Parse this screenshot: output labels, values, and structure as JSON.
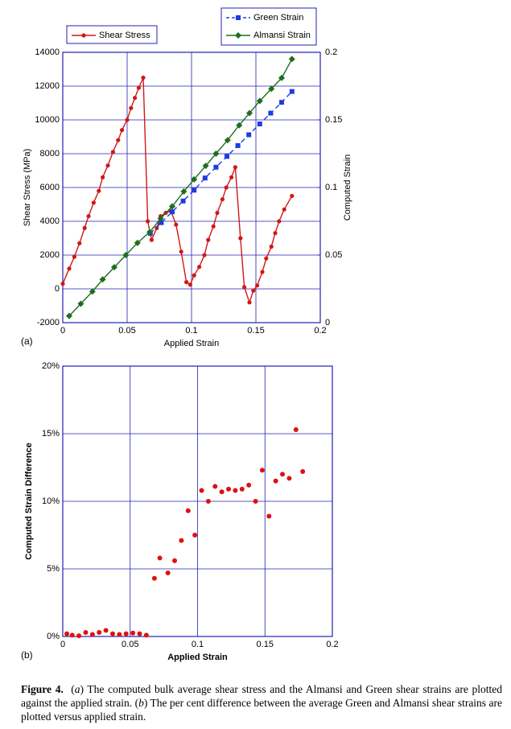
{
  "chart_data": [
    {
      "type": "line",
      "panel": "(a)",
      "x_label": "Applied Strain",
      "y_label": "Shear Stress (MPa)",
      "y2_label": "Computed Strain",
      "xlim": [
        0,
        0.2
      ],
      "xticks": [
        0,
        0.05,
        0.1,
        0.15,
        0.2
      ],
      "ylim": [
        -2000,
        14000
      ],
      "yticks": [
        -2000,
        0,
        2000,
        4000,
        6000,
        8000,
        10000,
        12000,
        14000
      ],
      "y2lim": [
        0,
        0.2
      ],
      "y2ticks": [
        0,
        0.05,
        0.1,
        0.15,
        0.2
      ],
      "grid": true,
      "series": [
        {
          "name": "Shear Stress",
          "color": "#d01818",
          "marker": "circle",
          "x": [
            0,
            0.005,
            0.009,
            0.013,
            0.017,
            0.02,
            0.024,
            0.028,
            0.031,
            0.035,
            0.039,
            0.043,
            0.046,
            0.05,
            0.053,
            0.056,
            0.059,
            0.0625,
            0.066,
            0.069,
            0.073,
            0.076,
            0.08,
            0.084,
            0.088,
            0.092,
            0.096,
            0.099,
            0.102,
            0.106,
            0.11,
            0.113,
            0.117,
            0.12,
            0.124,
            0.127,
            0.131,
            0.134,
            0.138,
            0.141,
            0.145,
            0.148,
            0.151,
            0.155,
            0.158,
            0.162,
            0.165,
            0.168,
            0.172,
            0.178
          ],
          "values": [
            300,
            1200,
            1900,
            2700,
            3600,
            4300,
            5100,
            5800,
            6600,
            7300,
            8100,
            8800,
            9400,
            10000,
            10700,
            11300,
            11900,
            12500,
            4000,
            2900,
            3600,
            4300,
            4500,
            4600,
            3800,
            2200,
            400,
            250,
            800,
            1300,
            2000,
            2900,
            3700,
            4500,
            5300,
            6000,
            6600,
            7200,
            3000,
            100,
            -800,
            -100,
            200,
            1000,
            1800,
            2500,
            3300,
            4000,
            4700,
            5500
          ]
        },
        {
          "name": "Green Strain",
          "color": "#1e3ce0",
          "marker": "square",
          "dashed": true,
          "axis": "y2",
          "x": [
            0.068,
            0.0765,
            0.085,
            0.0935,
            0.102,
            0.1105,
            0.119,
            0.1275,
            0.136,
            0.1445,
            0.153,
            0.1615,
            0.17,
            0.178
          ],
          "values": [
            0.066,
            0.074,
            0.082,
            0.09,
            0.098,
            0.107,
            0.115,
            0.123,
            0.131,
            0.139,
            0.147,
            0.155,
            0.163,
            0.171
          ]
        },
        {
          "name": "Almansi Strain",
          "color": "#1e6e1e",
          "marker": "diamond",
          "axis": "y2",
          "x": [
            0.005,
            0.014,
            0.023,
            0.031,
            0.04,
            0.049,
            0.058,
            0.0675,
            0.076,
            0.085,
            0.094,
            0.102,
            0.111,
            0.119,
            0.128,
            0.137,
            0.145,
            0.153,
            0.162,
            0.17,
            0.178
          ],
          "values": [
            0.005,
            0.014,
            0.023,
            0.032,
            0.041,
            0.05,
            0.059,
            0.067,
            0.077,
            0.086,
            0.097,
            0.106,
            0.116,
            0.125,
            0.135,
            0.146,
            0.155,
            0.164,
            0.173,
            0.181,
            0.195
          ]
        }
      ]
    },
    {
      "type": "scatter",
      "panel": "(b)",
      "x_label": "Applied Strain",
      "y_label": "Computed Strain Difference",
      "xlim": [
        0,
        0.2
      ],
      "xticks": [
        0,
        0.05,
        0.1,
        0.15,
        0.2
      ],
      "ylim": [
        0,
        20
      ],
      "yticks": [
        {
          "value": 0,
          "label": "0%"
        },
        {
          "value": 5,
          "label": "5%"
        },
        {
          "value": 10,
          "label": "10%"
        },
        {
          "value": 15,
          "label": "15%"
        },
        {
          "value": 20,
          "label": "20%"
        }
      ],
      "grid": true,
      "series": [
        {
          "color": "#e01010",
          "x": [
            0.003,
            0.007,
            0.012,
            0.017,
            0.022,
            0.027,
            0.032,
            0.037,
            0.042,
            0.047,
            0.052,
            0.057,
            0.062,
            0.068,
            0.072,
            0.078,
            0.083,
            0.088,
            0.093,
            0.098,
            0.103,
            0.108,
            0.113,
            0.118,
            0.123,
            0.128,
            0.133,
            0.138,
            0.143,
            0.148,
            0.153,
            0.158,
            0.163,
            0.168,
            0.173,
            0.178
          ],
          "values": [
            0.2,
            0.1,
            0.05,
            0.3,
            0.15,
            0.3,
            0.45,
            0.2,
            0.15,
            0.2,
            0.25,
            0.2,
            0.1,
            4.3,
            5.8,
            4.7,
            5.6,
            7.1,
            9.3,
            7.5,
            10.8,
            10,
            11.1,
            10.7,
            10.9,
            10.8,
            10.9,
            11.2,
            10,
            12.3,
            8.9,
            11.5,
            12,
            11.7,
            15.3,
            12.2
          ]
        }
      ]
    }
  ],
  "caption": {
    "label": "Figure 4.",
    "segments": [
      "(",
      "a",
      ") The computed bulk average shear stress and the Almansi and Green shear strains are plotted against the applied strain. (",
      "b",
      ") The per cent difference between the average Green and Almansi shear strains are plotted versus applied strain."
    ]
  }
}
